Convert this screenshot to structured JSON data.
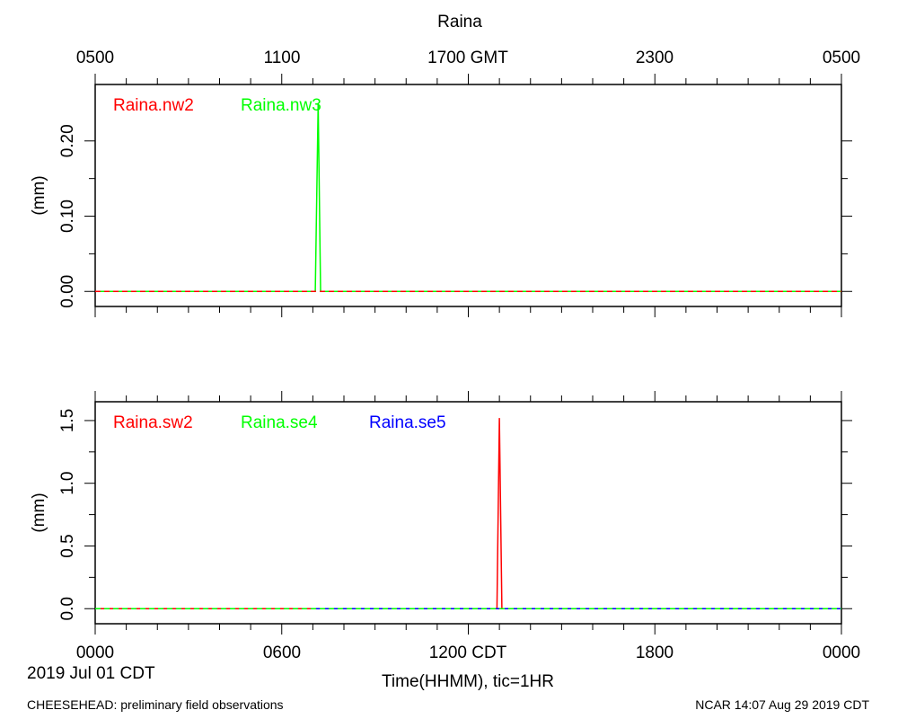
{
  "title": "Raina",
  "top_axis": {
    "ticks": [
      "0500",
      "1100",
      "1700 GMT",
      "2300",
      "0500"
    ]
  },
  "bottom_axis": {
    "ticks": [
      "0000",
      "0600",
      "1200 CDT",
      "1800",
      "0000"
    ],
    "label": "Time(HHMM), tic=1HR",
    "date": "2019 Jul 01 CDT"
  },
  "footer": {
    "left": "CHEESEHEAD: preliminary field observations",
    "right": "NCAR 14:07 Aug 29 2019 CDT"
  },
  "colors": {
    "red": "#ff0000",
    "green": "#00ff00",
    "blue": "#0000ff"
  },
  "chart_data": [
    {
      "type": "line",
      "ylabel": "(mm)",
      "xlim": [
        0,
        24
      ],
      "ylim": [
        -0.02,
        0.275
      ],
      "yticks": [
        0.0,
        0.1,
        0.2
      ],
      "ytick_labels": [
        "0.00",
        "0.10",
        "0.20"
      ],
      "series": [
        {
          "name": "Raina.nw2",
          "color": "#ff0000",
          "dashed": true,
          "x": [
            0,
            24
          ],
          "y": [
            0,
            0
          ]
        },
        {
          "name": "Raina.nw3",
          "color": "#00ff00",
          "dashed": false,
          "x": [
            0,
            7.08,
            7.17,
            7.25,
            24
          ],
          "y": [
            0,
            0,
            0.25,
            0,
            0
          ]
        }
      ]
    },
    {
      "type": "line",
      "ylabel": "(mm)",
      "xlim": [
        0,
        24
      ],
      "ylim": [
        -0.12,
        1.65
      ],
      "yticks": [
        0.0,
        0.5,
        1.0,
        1.5
      ],
      "ytick_labels": [
        "0.0",
        "0.5",
        "1.0",
        "1.5"
      ],
      "series": [
        {
          "name": "Raina.sw2",
          "color": "#ff0000",
          "dashed": false,
          "x": [
            0,
            12.92,
            13.0,
            13.08,
            24
          ],
          "y": [
            0,
            0,
            1.52,
            0,
            0
          ]
        },
        {
          "name": "Raina.se4",
          "color": "#00ff00",
          "dashed": true,
          "x": [
            0,
            24
          ],
          "y": [
            0,
            0
          ]
        },
        {
          "name": "Raina.se5",
          "color": "#0000ff",
          "dashed": false,
          "x": [
            7.0,
            24
          ],
          "y": [
            0,
            0
          ]
        }
      ]
    }
  ]
}
